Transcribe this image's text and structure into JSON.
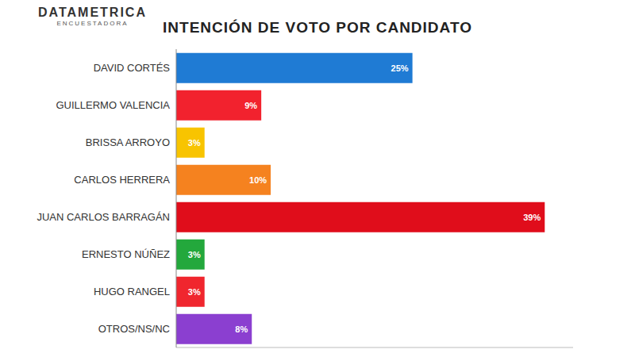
{
  "chart_data": {
    "type": "bar",
    "title": "INTENCIÓN DE VOTO POR CANDIDATO",
    "annotations": [
      "DATAMETRICA",
      "ENCUESTADORA"
    ],
    "orientation": "horizontal",
    "categories": [
      "DAVID CORTÉS",
      "GUILLERMO VALENCIA",
      "BRISSA ARROYO",
      "CARLOS HERRERA",
      "JUAN CARLOS BARRAGÁN",
      "ERNESTO NÚÑEZ",
      "HUGO RANGEL",
      "OTROS/NS/NC"
    ],
    "values": [
      25,
      9,
      3,
      10,
      39,
      3,
      3,
      8
    ],
    "value_labels": [
      "25%",
      "9%",
      "3%",
      "10%",
      "39%",
      "3%",
      "3%",
      "8%"
    ],
    "colors": [
      "#1f7bd4",
      "#f2222e",
      "#f8c400",
      "#f5821f",
      "#e00d1b",
      "#23a83c",
      "#f0262e",
      "#8b3fd0"
    ],
    "xlim": [
      0,
      42
    ],
    "data_labels": true,
    "tick_labels": "y",
    "grid": false
  }
}
